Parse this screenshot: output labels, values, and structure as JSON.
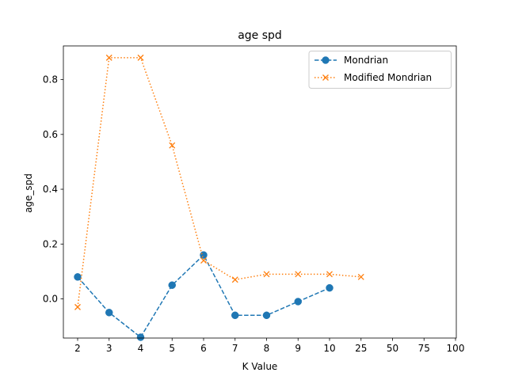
{
  "chart_data": {
    "type": "line",
    "title": "age spd",
    "xlabel": "K Value",
    "ylabel": "age_spd",
    "categories": [
      "2",
      "3",
      "4",
      "5",
      "6",
      "7",
      "8",
      "9",
      "10",
      "25",
      "50",
      "75",
      "100"
    ],
    "ylim": [
      -0.143,
      0.923
    ],
    "yticks": [
      0.0,
      0.2,
      0.4,
      0.6,
      0.8
    ],
    "ytick_labels": [
      "0.0",
      "0.2",
      "0.4",
      "0.6",
      "0.8"
    ],
    "grid": false,
    "legend_position": "top-right",
    "series": [
      {
        "name": "Mondrian",
        "color": "#1f77b4",
        "linestyle": "dashed",
        "marker": "circle",
        "x": [
          "2",
          "3",
          "4",
          "5",
          "6",
          "7",
          "8",
          "9",
          "10"
        ],
        "values": [
          0.08,
          -0.05,
          -0.14,
          0.05,
          0.16,
          -0.06,
          -0.06,
          -0.01,
          0.04
        ]
      },
      {
        "name": "Modified Mondrian",
        "color": "#ff7f0e",
        "linestyle": "dotted",
        "marker": "x",
        "x": [
          "2",
          "3",
          "4",
          "5",
          "6",
          "7",
          "8",
          "9",
          "10",
          "25"
        ],
        "values": [
          -0.03,
          0.88,
          0.88,
          0.56,
          0.14,
          0.07,
          0.09,
          0.09,
          0.09,
          0.08
        ]
      }
    ]
  }
}
